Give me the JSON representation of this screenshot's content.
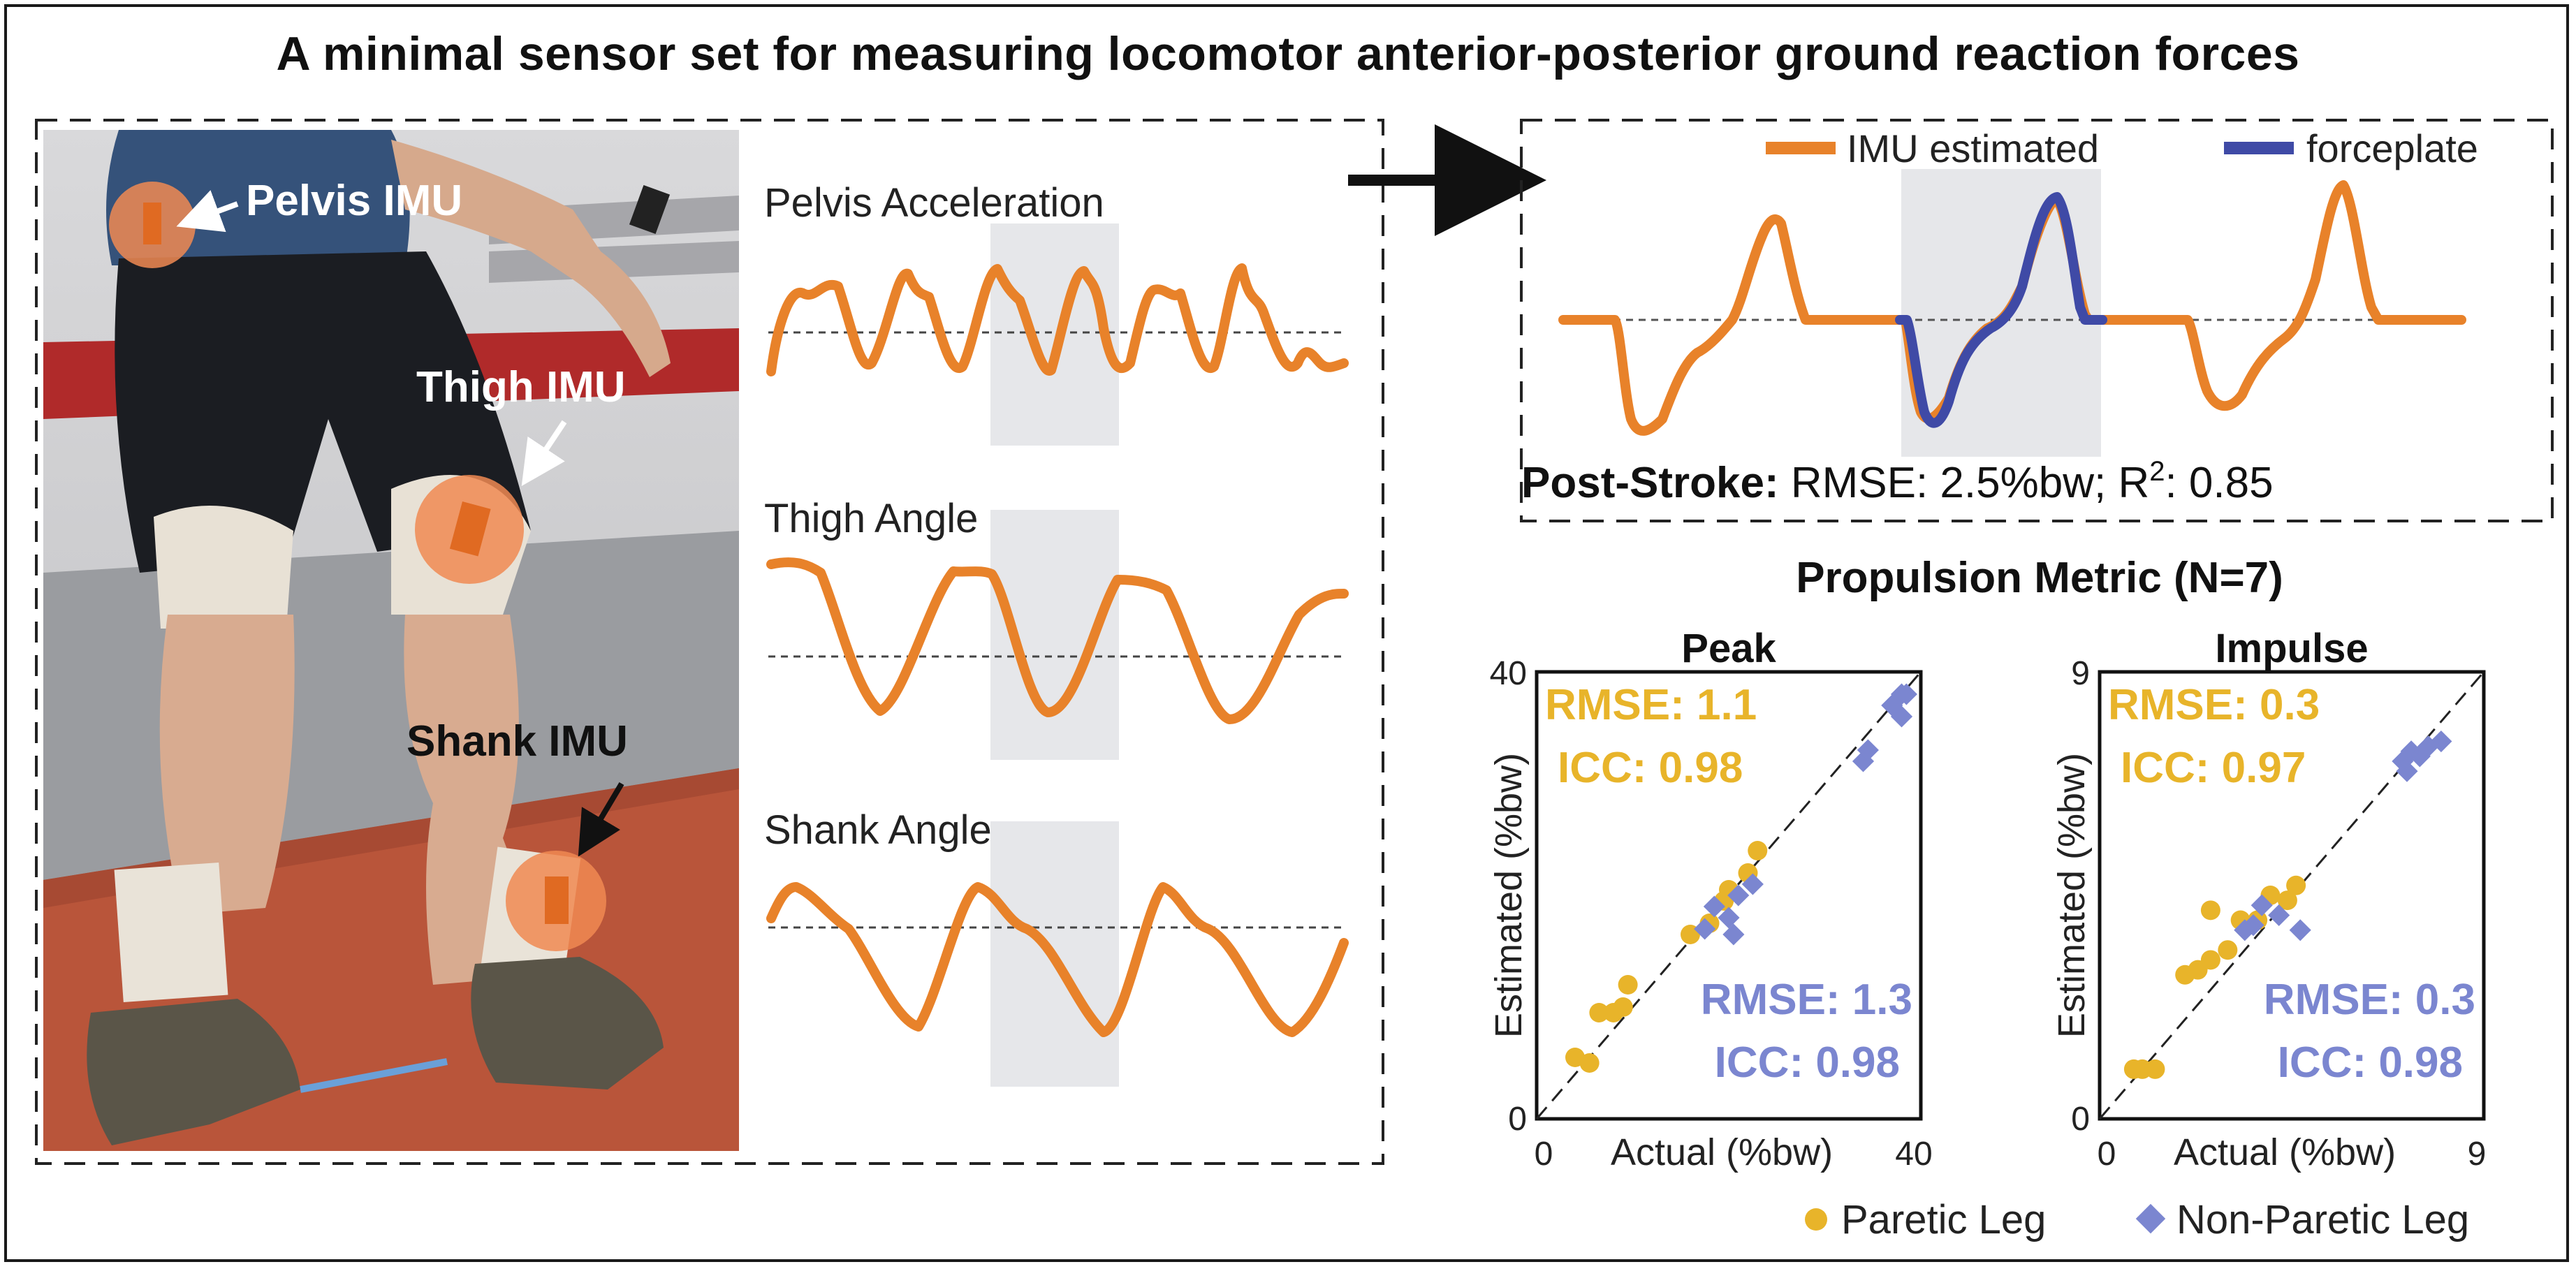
{
  "title": "A minimal sensor set for measuring locomotor anterior-posterior ground reaction forces",
  "photo": {
    "labels": {
      "pelvis": "Pelvis IMU",
      "thigh": "Thigh IMU",
      "shank": "Shank IMU"
    }
  },
  "signals": {
    "pelvis": "Pelvis  Acceleration",
    "thigh": "Thigh Angle",
    "shank": "Shank Angle"
  },
  "estimate": {
    "legend": {
      "imu": "IMU estimated",
      "forceplate": "forceplate"
    },
    "colors": {
      "imu": "#e8822a",
      "forceplate": "#3f4aa6"
    },
    "caption_bold": "Post-Stroke:",
    "caption_rest": " RMSE: 2.5%bw; R",
    "caption_sup": "2",
    "caption_end": ": 0.85"
  },
  "propulsion": {
    "title": "Propulsion Metric (N=7)",
    "ylabel": "Estimated (%bw)",
    "xlabel": "Actual (%bw)",
    "legend": {
      "paretic": "Paretic Leg",
      "nonparetic": "Non-Paretic Leg"
    },
    "colors": {
      "paretic": "#e8b42a",
      "nonparetic": "#7b86d0"
    }
  },
  "chart_data": [
    {
      "type": "scatter",
      "title": "Peak",
      "xlabel": "Actual (%bw)",
      "ylabel": "Estimated (%bw)",
      "xlim": [
        0,
        40
      ],
      "ylim": [
        0,
        40
      ],
      "xticks": [
        "0",
        "40"
      ],
      "yticks": [
        "0",
        "40"
      ],
      "annotations": {
        "paretic_rmse": "RMSE: 1.1",
        "paretic_icc": "ICC: 0.98",
        "nonparetic_rmse": "RMSE: 1.3",
        "nonparetic_icc": "ICC: 0.98"
      },
      "series": [
        {
          "name": "Paretic Leg",
          "points": [
            [
              4,
              5.5
            ],
            [
              5.5,
              5
            ],
            [
              6.5,
              9.5
            ],
            [
              8,
              9.5
            ],
            [
              9,
              10
            ],
            [
              9.5,
              12
            ],
            [
              16,
              16.5
            ],
            [
              18,
              17.5
            ],
            [
              19.5,
              19.5
            ],
            [
              20,
              20.5
            ],
            [
              22,
              22
            ],
            [
              23,
              24
            ]
          ]
        },
        {
          "name": "Non-Paretic Leg",
          "points": [
            [
              17.5,
              17
            ],
            [
              18.5,
              19
            ],
            [
              20,
              18
            ],
            [
              20.5,
              16.5
            ],
            [
              21,
              20
            ],
            [
              22.5,
              21
            ],
            [
              34,
              32
            ],
            [
              34.5,
              33
            ],
            [
              37,
              37
            ],
            [
              38,
              38
            ],
            [
              38,
              36
            ],
            [
              38.5,
              38
            ]
          ]
        }
      ]
    },
    {
      "type": "scatter",
      "title": "Impulse",
      "xlabel": "Actual (%bw)",
      "ylabel": "Estimated (%bw)",
      "xlim": [
        0,
        9
      ],
      "ylim": [
        0,
        9
      ],
      "xticks": [
        "0",
        "9"
      ],
      "yticks": [
        "0",
        "9"
      ],
      "annotations": {
        "paretic_rmse": "RMSE: 0.3",
        "paretic_icc": "ICC: 0.97",
        "nonparetic_rmse": "RMSE: 0.3",
        "nonparetic_icc": "ICC: 0.98"
      },
      "series": [
        {
          "name": "Paretic Leg",
          "points": [
            [
              0.8,
              1
            ],
            [
              1,
              1
            ],
            [
              1.3,
              1
            ],
            [
              2,
              2.9
            ],
            [
              2.3,
              3
            ],
            [
              2.6,
              3.2
            ],
            [
              3,
              3.4
            ],
            [
              2.6,
              4.2
            ],
            [
              3.3,
              4
            ],
            [
              3.7,
              4
            ],
            [
              4,
              4.5
            ],
            [
              4.4,
              4.4
            ],
            [
              4.6,
              4.7
            ]
          ]
        },
        {
          "name": "Non-Paretic Leg",
          "points": [
            [
              3.4,
              3.8
            ],
            [
              3.6,
              3.9
            ],
            [
              3.8,
              4.3
            ],
            [
              4.2,
              4.1
            ],
            [
              4.7,
              3.8
            ],
            [
              7.1,
              7.2
            ],
            [
              7.2,
              7
            ],
            [
              7.3,
              7.4
            ],
            [
              7.5,
              7.3
            ],
            [
              7.7,
              7.5
            ],
            [
              8,
              7.6
            ]
          ]
        }
      ]
    }
  ]
}
